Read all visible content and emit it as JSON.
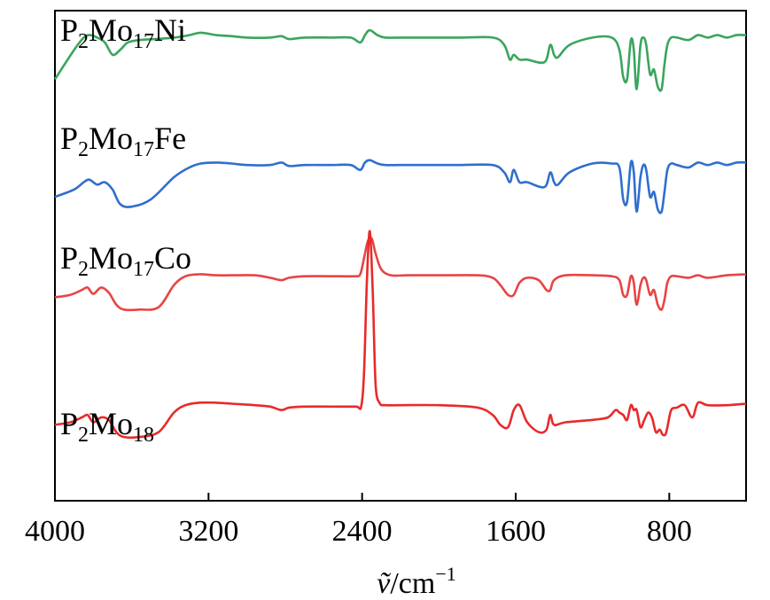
{
  "chart_data": {
    "type": "line",
    "title": "",
    "xlabel": "ṽ/cm",
    "xlabel_parts": {
      "symbol": "ṽ",
      "unit": "/cm",
      "exponent": "−1"
    },
    "ylabel": "",
    "x_reversed": true,
    "xlim": [
      4000,
      400
    ],
    "ylim": [
      0,
      10
    ],
    "x_ticks": [
      4000,
      3200,
      2400,
      1600,
      800
    ],
    "x_tick_labels": [
      "4000",
      "3200",
      "2400",
      "1600",
      "800"
    ],
    "y_ticks_shown": false,
    "grid": false,
    "legend": "inline-labels",
    "series": [
      {
        "name": "P2Mo17Ni",
        "label": {
          "main1": "P",
          "sub1": "2",
          "main2": "Mo",
          "sub2": "17",
          "main3": "Ni"
        },
        "color": "#3aa55d",
        "x": [
          4000,
          3900,
          3850,
          3820,
          3780,
          3740,
          3700,
          3660,
          3620,
          3560,
          3480,
          3380,
          3300,
          3240,
          3160,
          3080,
          3000,
          2880,
          2820,
          2780,
          2700,
          2560,
          2460,
          2410,
          2385,
          2360,
          2320,
          2280,
          2200,
          1900,
          1720,
          1660,
          1630,
          1610,
          1580,
          1540,
          1450,
          1420,
          1400,
          1380,
          1320,
          1200,
          1100,
          1060,
          1040,
          1020,
          1000,
          985,
          970,
          950,
          935,
          920,
          900,
          880,
          860,
          840,
          825,
          810,
          790,
          760,
          700,
          650,
          600,
          550,
          500,
          450,
          400
        ],
        "y": [
          8.6,
          9.2,
          9.45,
          9.5,
          9.45,
          9.35,
          9.1,
          9.2,
          9.35,
          9.4,
          9.42,
          9.45,
          9.5,
          9.55,
          9.5,
          9.48,
          9.45,
          9.45,
          9.48,
          9.42,
          9.45,
          9.45,
          9.45,
          9.35,
          9.5,
          9.6,
          9.5,
          9.45,
          9.45,
          9.45,
          9.45,
          9.3,
          9.0,
          9.1,
          9.0,
          9.0,
          8.95,
          9.3,
          9.1,
          9.05,
          9.3,
          9.45,
          9.45,
          9.2,
          8.65,
          8.6,
          9.4,
          9.2,
          8.4,
          9.3,
          9.45,
          9.3,
          8.7,
          8.8,
          8.45,
          8.4,
          8.9,
          9.3,
          9.45,
          9.45,
          9.4,
          9.5,
          9.45,
          9.5,
          9.45,
          9.5,
          9.5
        ]
      },
      {
        "name": "P2Mo17Fe",
        "label": {
          "main1": "P",
          "sub1": "2",
          "main2": "Mo",
          "sub2": "17",
          "main3": "Fe"
        },
        "color": "#2f6fce",
        "x": [
          4000,
          3900,
          3850,
          3820,
          3780,
          3740,
          3700,
          3660,
          3600,
          3500,
          3380,
          3300,
          3240,
          3160,
          3080,
          3000,
          2880,
          2820,
          2780,
          2700,
          2560,
          2460,
          2410,
          2385,
          2360,
          2320,
          2280,
          2200,
          1900,
          1720,
          1660,
          1630,
          1610,
          1580,
          1540,
          1450,
          1420,
          1400,
          1380,
          1320,
          1200,
          1100,
          1060,
          1040,
          1020,
          1000,
          985,
          970,
          950,
          935,
          920,
          900,
          880,
          860,
          840,
          825,
          810,
          790,
          760,
          700,
          650,
          600,
          550,
          500,
          450,
          400
        ],
        "y": [
          6.2,
          6.35,
          6.5,
          6.55,
          6.45,
          6.5,
          6.35,
          6.05,
          6.0,
          6.15,
          6.6,
          6.8,
          6.88,
          6.9,
          6.88,
          6.85,
          6.85,
          6.9,
          6.83,
          6.85,
          6.85,
          6.85,
          6.75,
          6.9,
          6.95,
          6.88,
          6.85,
          6.85,
          6.85,
          6.85,
          6.7,
          6.5,
          6.75,
          6.5,
          6.5,
          6.4,
          6.7,
          6.5,
          6.45,
          6.7,
          6.88,
          6.88,
          6.8,
          6.15,
          6.1,
          6.9,
          6.7,
          5.9,
          6.6,
          6.85,
          6.75,
          6.2,
          6.3,
          5.95,
          5.9,
          6.3,
          6.75,
          6.88,
          6.85,
          6.8,
          6.9,
          6.85,
          6.9,
          6.85,
          6.9,
          6.9
        ]
      },
      {
        "name": "P2Mo17Co",
        "label": {
          "main1": "P",
          "sub1": "2",
          "main2": "Mo",
          "sub2": "17",
          "main3": "Co"
        },
        "color": "#e84444",
        "x": [
          4000,
          3920,
          3860,
          3830,
          3800,
          3760,
          3720,
          3680,
          3640,
          3560,
          3460,
          3380,
          3320,
          3250,
          3160,
          3080,
          2960,
          2880,
          2820,
          2780,
          2700,
          2520,
          2440,
          2410,
          2390,
          2370,
          2350,
          2330,
          2300,
          2250,
          2160,
          2000,
          1800,
          1720,
          1680,
          1640,
          1610,
          1580,
          1540,
          1480,
          1440,
          1420,
          1400,
          1340,
          1200,
          1100,
          1060,
          1040,
          1020,
          1000,
          985,
          970,
          950,
          935,
          920,
          900,
          880,
          860,
          840,
          825,
          810,
          790,
          760,
          700,
          650,
          600,
          500,
          400
        ],
        "y": [
          4.15,
          4.2,
          4.3,
          4.35,
          4.22,
          4.35,
          4.25,
          4.0,
          3.9,
          3.9,
          3.95,
          4.4,
          4.58,
          4.62,
          4.6,
          4.6,
          4.6,
          4.55,
          4.5,
          4.55,
          4.58,
          4.58,
          4.58,
          4.62,
          4.95,
          5.3,
          5.35,
          5.05,
          4.72,
          4.6,
          4.6,
          4.6,
          4.6,
          4.55,
          4.4,
          4.2,
          4.2,
          4.45,
          4.55,
          4.5,
          4.3,
          4.3,
          4.5,
          4.6,
          4.6,
          4.58,
          4.5,
          4.2,
          4.2,
          4.58,
          4.45,
          4.0,
          4.4,
          4.55,
          4.5,
          4.2,
          4.3,
          4.0,
          3.9,
          4.1,
          4.45,
          4.58,
          4.58,
          4.55,
          4.6,
          4.55,
          4.6,
          4.62
        ]
      },
      {
        "name": "P2Mo18",
        "label": {
          "main1": "P",
          "sub1": "2",
          "main2": "Mo",
          "sub2": "18",
          "main3": ""
        },
        "color": "#e82a2a",
        "x": [
          4000,
          3920,
          3860,
          3830,
          3800,
          3760,
          3720,
          3680,
          3640,
          3560,
          3460,
          3380,
          3320,
          3250,
          3160,
          3080,
          2960,
          2880,
          2820,
          2780,
          2700,
          2520,
          2430,
          2405,
          2390,
          2375,
          2360,
          2345,
          2330,
          2310,
          2280,
          2200,
          2000,
          1800,
          1720,
          1680,
          1640,
          1610,
          1580,
          1540,
          1480,
          1440,
          1420,
          1400,
          1340,
          1200,
          1120,
          1080,
          1060,
          1040,
          1020,
          1000,
          985,
          970,
          950,
          930,
          910,
          890,
          870,
          850,
          835,
          820,
          810,
          790,
          760,
          720,
          680,
          650,
          600,
          500,
          400
        ],
        "y": [
          1.55,
          1.6,
          1.7,
          1.75,
          1.6,
          1.7,
          1.65,
          1.4,
          1.3,
          1.3,
          1.4,
          1.8,
          1.95,
          2.0,
          2.0,
          1.98,
          1.95,
          1.92,
          1.85,
          1.9,
          1.92,
          1.92,
          1.92,
          1.92,
          2.6,
          4.5,
          5.5,
          4.3,
          2.4,
          2.0,
          1.95,
          1.95,
          1.95,
          1.9,
          1.75,
          1.55,
          1.5,
          1.85,
          1.95,
          1.6,
          1.4,
          1.45,
          1.75,
          1.55,
          1.6,
          1.65,
          1.7,
          1.85,
          1.8,
          1.75,
          1.65,
          1.95,
          1.85,
          1.85,
          1.5,
          1.65,
          1.8,
          1.7,
          1.4,
          1.45,
          1.35,
          1.35,
          1.5,
          1.85,
          1.9,
          1.95,
          1.7,
          2.0,
          1.95,
          1.95,
          1.98
        ]
      }
    ]
  }
}
